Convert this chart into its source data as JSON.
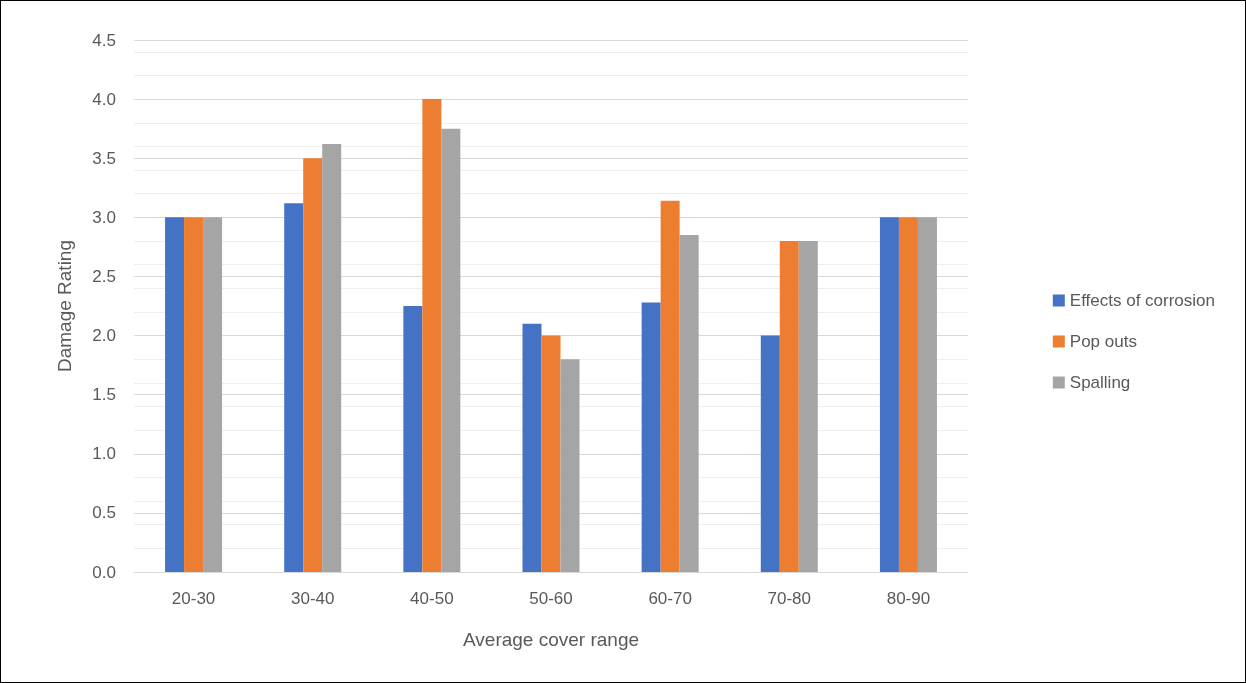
{
  "chart_data": {
    "type": "bar",
    "xlabel": "Average cover range",
    "ylabel": "Damage Rating",
    "categories": [
      "20-30",
      "30-40",
      "40-50",
      "50-60",
      "60-70",
      "70-80",
      "80-90"
    ],
    "series": [
      {
        "name": "Effects of corrosion",
        "color": "#4472c4",
        "values": [
          3.0,
          3.12,
          2.25,
          2.1,
          2.28,
          2.0,
          3.0
        ]
      },
      {
        "name": "Pop outs",
        "color": "#ed7d31",
        "values": [
          3.0,
          3.5,
          4.0,
          2.0,
          3.14,
          2.8,
          3.0
        ]
      },
      {
        "name": "Spalling",
        "color": "#a5a5a5",
        "values": [
          3.0,
          3.62,
          3.75,
          1.8,
          2.85,
          2.8,
          3.0
        ]
      }
    ],
    "ylim": [
      0,
      4.5
    ],
    "yticks": [
      {
        "value": 0,
        "label": "0.0"
      },
      {
        "value": 0.5,
        "label": "0.5"
      },
      {
        "value": 1,
        "label": "1.0"
      },
      {
        "value": 1.5,
        "label": "1.5"
      },
      {
        "value": 2,
        "label": "2.0"
      },
      {
        "value": 2.5,
        "label": "2.5"
      },
      {
        "value": 3,
        "label": "3.0"
      },
      {
        "value": 3.5,
        "label": "3.5"
      },
      {
        "value": 4,
        "label": "4.0"
      },
      {
        "value": 4.5,
        "label": "4.5"
      }
    ],
    "grid": true,
    "legend": "right"
  }
}
